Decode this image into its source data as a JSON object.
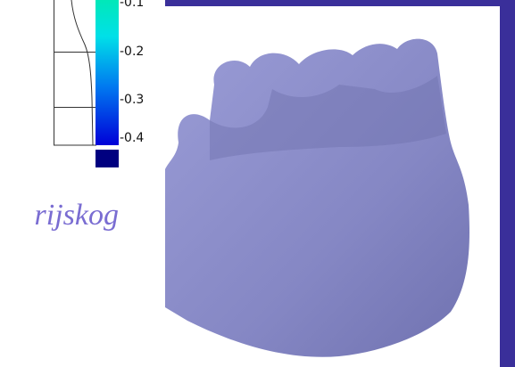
{
  "scale": {
    "ticks": [
      "-0.1",
      "-0.2",
      "-0.3",
      "-0.4"
    ]
  },
  "caption": "rijskog"
}
